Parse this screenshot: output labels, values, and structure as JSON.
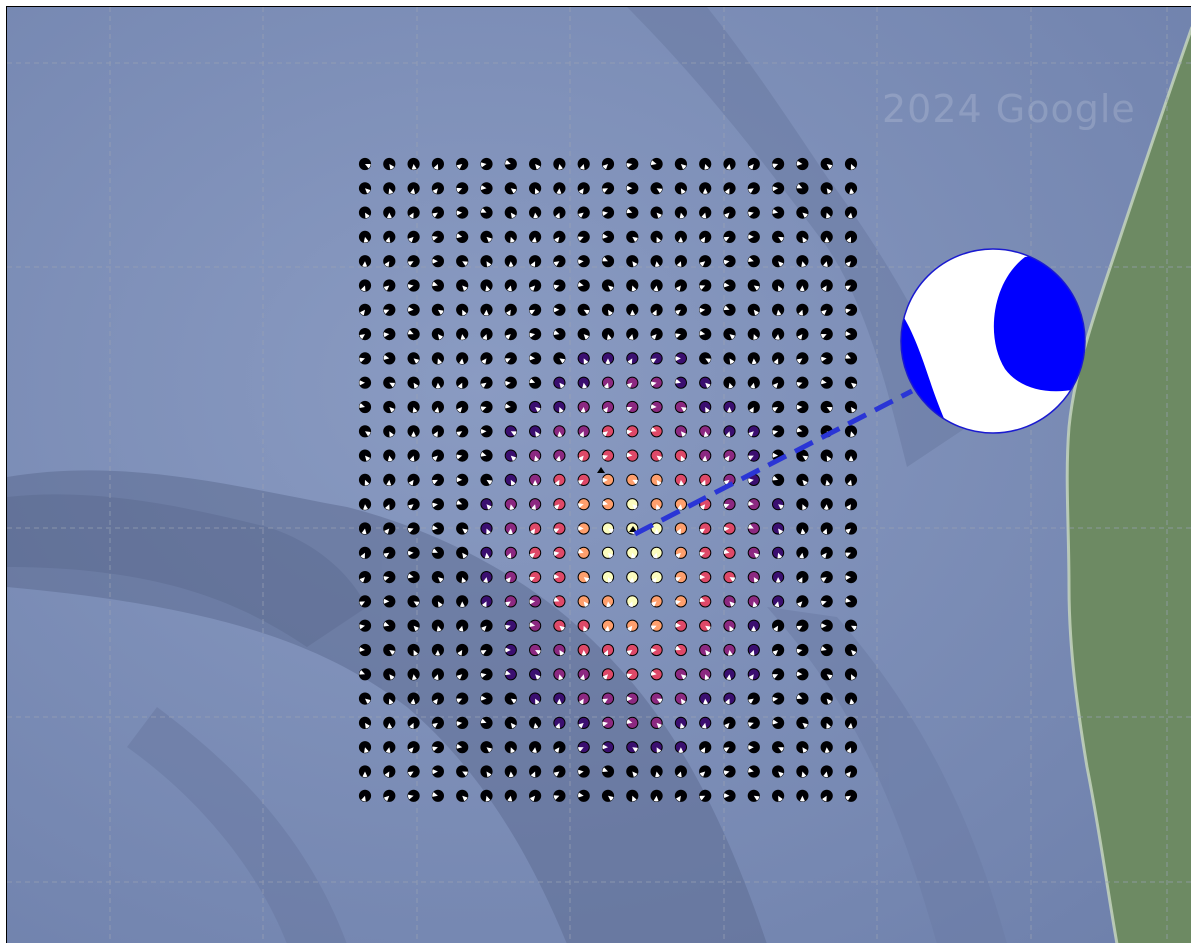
{
  "map": {
    "watermark": "2024 Google",
    "colors": {
      "ocean": "#7d8fb6",
      "land": "#6f8a6a",
      "graticule": "#9aa2b4",
      "connector": "#2a35d6",
      "main_beachball_fill": "#0000ff"
    },
    "grid": {
      "rows": 27,
      "cols": 21
    },
    "heat_center": {
      "row": 16,
      "col": 11
    },
    "heat_palette": [
      "#000004",
      "#3b0f70",
      "#8c2981",
      "#de4968",
      "#fe9f6d",
      "#fcfdbf"
    ],
    "markers": [
      "triangle-marker-1",
      "triangle-marker-2"
    ],
    "icons": [
      "beachball-icon",
      "focal-mechanism-icon",
      "triangle-marker-icon"
    ]
  }
}
